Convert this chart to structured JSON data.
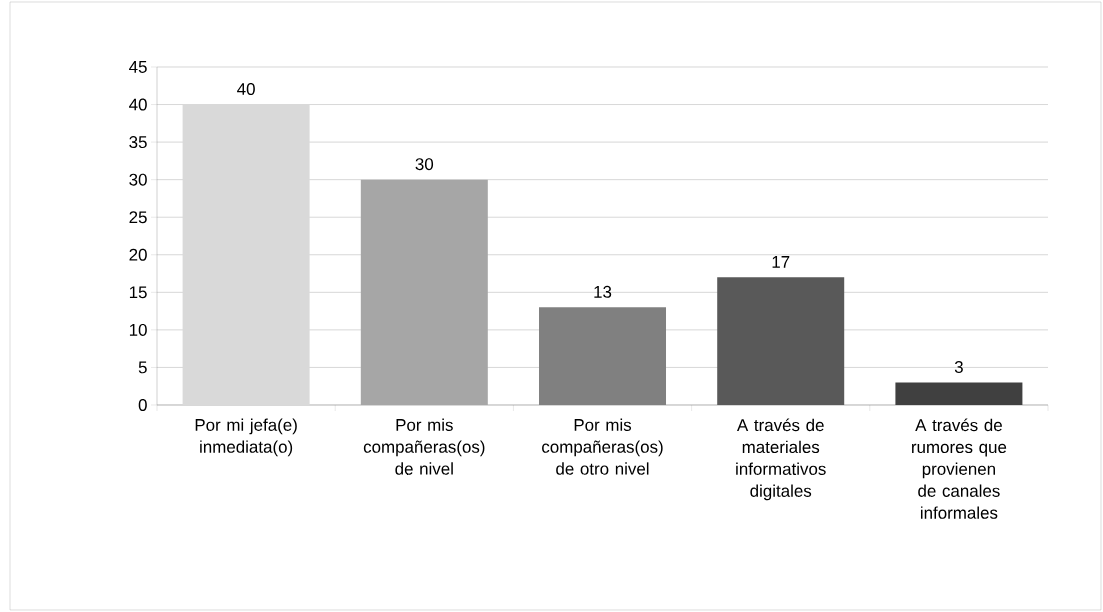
{
  "chart_data": {
    "type": "bar",
    "categories": [
      "Por mi jefa(e) inmediata(o)",
      "Por mis compañeras(os) de nivel",
      "Por mis compañeras(os) de otro nivel",
      "A través de materiales informativos digitales",
      "A través de rumores que provienen de canales informales"
    ],
    "values": [
      40,
      30,
      13,
      17,
      3
    ],
    "colors": [
      "#d9d9d9",
      "#a6a6a6",
      "#808080",
      "#595959",
      "#404040"
    ],
    "ylim": [
      0,
      45
    ],
    "yticks": [
      0,
      5,
      10,
      15,
      20,
      25,
      30,
      35,
      40,
      45
    ],
    "grid": "y",
    "data_labels": true
  }
}
